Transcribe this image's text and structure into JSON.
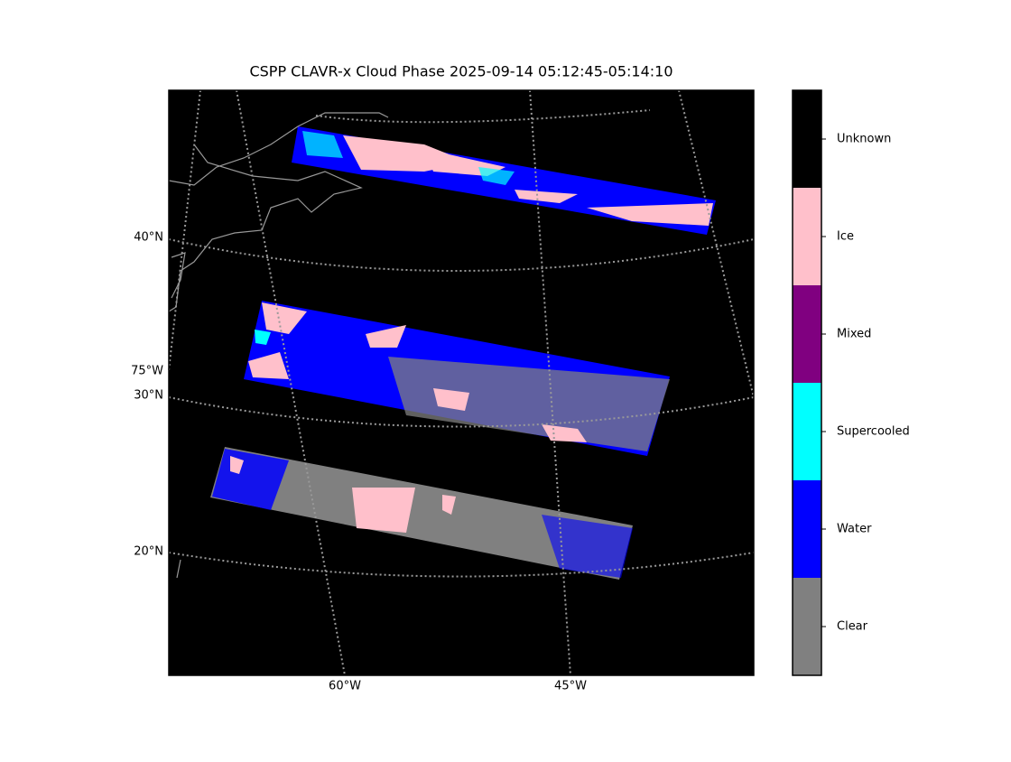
{
  "map": {
    "title": "CSPP CLAVR-x Cloud Phase 2025-09-14 05:12:45-05:14:10",
    "lat_labels": [
      "40°N",
      "30°N",
      "20°N"
    ],
    "lon_labels": [
      "60°W",
      "45°W",
      "75°W"
    ]
  },
  "colorbar": {
    "classes": [
      {
        "label": "Unknown",
        "color": "#000000"
      },
      {
        "label": "Ice",
        "color": "#ffc0cb"
      },
      {
        "label": "Mixed",
        "color": "#800080"
      },
      {
        "label": "Supercooled",
        "color": "#00ffff"
      },
      {
        "label": "Water",
        "color": "#0000ff"
      },
      {
        "label": "Clear",
        "color": "#808080"
      }
    ]
  }
}
